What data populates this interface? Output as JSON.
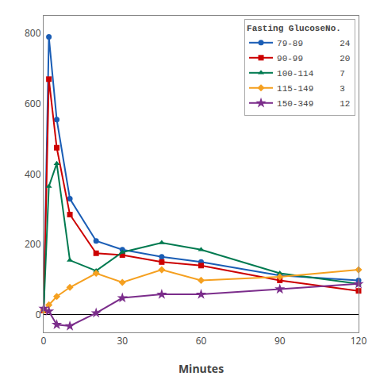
{
  "chart_data": {
    "type": "line",
    "xlabel": "Minutes",
    "legend_title": "Fasting GlucoseNo.",
    "x": [
      0,
      2,
      5,
      10,
      20,
      30,
      45,
      60,
      90,
      120
    ],
    "series": [
      {
        "name": "79-89       24",
        "color": "#1a5db5",
        "marker": "circle",
        "values": [
          12,
          790,
          555,
          330,
          210,
          185,
          165,
          150,
          112,
          98
        ]
      },
      {
        "name": "90-99       20",
        "color": "#cc0000",
        "marker": "square",
        "values": [
          12,
          670,
          475,
          285,
          175,
          170,
          150,
          140,
          98,
          68
        ]
      },
      {
        "name": "100-114     7",
        "color": "#007a50",
        "marker": "triangle-up",
        "values": [
          12,
          365,
          430,
          155,
          125,
          178,
          205,
          185,
          118,
          88
        ]
      },
      {
        "name": "115-149     3",
        "color": "#f5a020",
        "marker": "diamond",
        "values": [
          12,
          28,
          52,
          78,
          118,
          92,
          128,
          98,
          108,
          128
        ]
      },
      {
        "name": "150-349     12",
        "color": "#7b2d8b",
        "marker": "star",
        "values": [
          18,
          10,
          -28,
          -32,
          5,
          48,
          58,
          58,
          73,
          88
        ]
      }
    ],
    "xlim": [
      0,
      120
    ],
    "ylim": [
      -50,
      850
    ],
    "xticks": [
      0,
      30,
      60,
      90,
      120
    ],
    "yticks": [
      0,
      200,
      400,
      600,
      800
    ],
    "grid": false,
    "legend": "upper right"
  }
}
